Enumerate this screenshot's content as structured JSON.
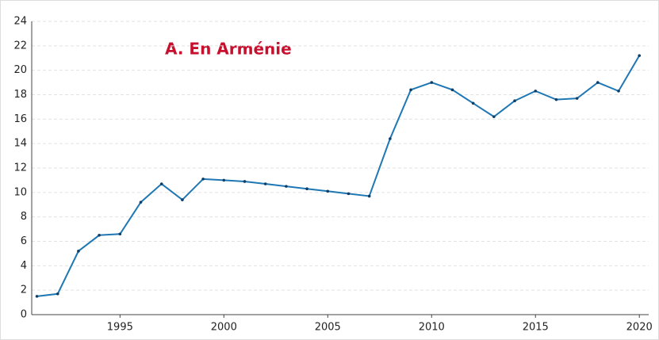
{
  "chart_data": {
    "type": "line",
    "title": "A. En Arménie",
    "x": [
      1991,
      1992,
      1993,
      1994,
      1995,
      1996,
      1997,
      1998,
      1999,
      2000,
      2001,
      2002,
      2003,
      2004,
      2005,
      2006,
      2007,
      2008,
      2009,
      2010,
      2011,
      2012,
      2013,
      2014,
      2015,
      2016,
      2017,
      2018,
      2019,
      2020
    ],
    "series": [
      {
        "color": "#1f77b4",
        "values": [
          1.5,
          1.7,
          5.2,
          6.5,
          6.6,
          9.2,
          10.7,
          9.4,
          11.1,
          11.0,
          10.9,
          10.7,
          10.5,
          10.3,
          10.1,
          9.9,
          9.7,
          14.4,
          18.4,
          19.0,
          18.4,
          17.3,
          16.2,
          17.5,
          18.3,
          17.6,
          17.7,
          19.0,
          18.3,
          21.2
        ]
      }
    ],
    "xlim": [
      1990.75,
      2020.45
    ],
    "xticks": [
      1995,
      2000,
      2005,
      2010,
      2015,
      2020
    ],
    "ylim": [
      0,
      24
    ],
    "yticks": [
      0,
      2,
      4,
      6,
      8,
      10,
      12,
      14,
      16,
      18,
      20,
      22,
      24
    ],
    "grid": true
  }
}
